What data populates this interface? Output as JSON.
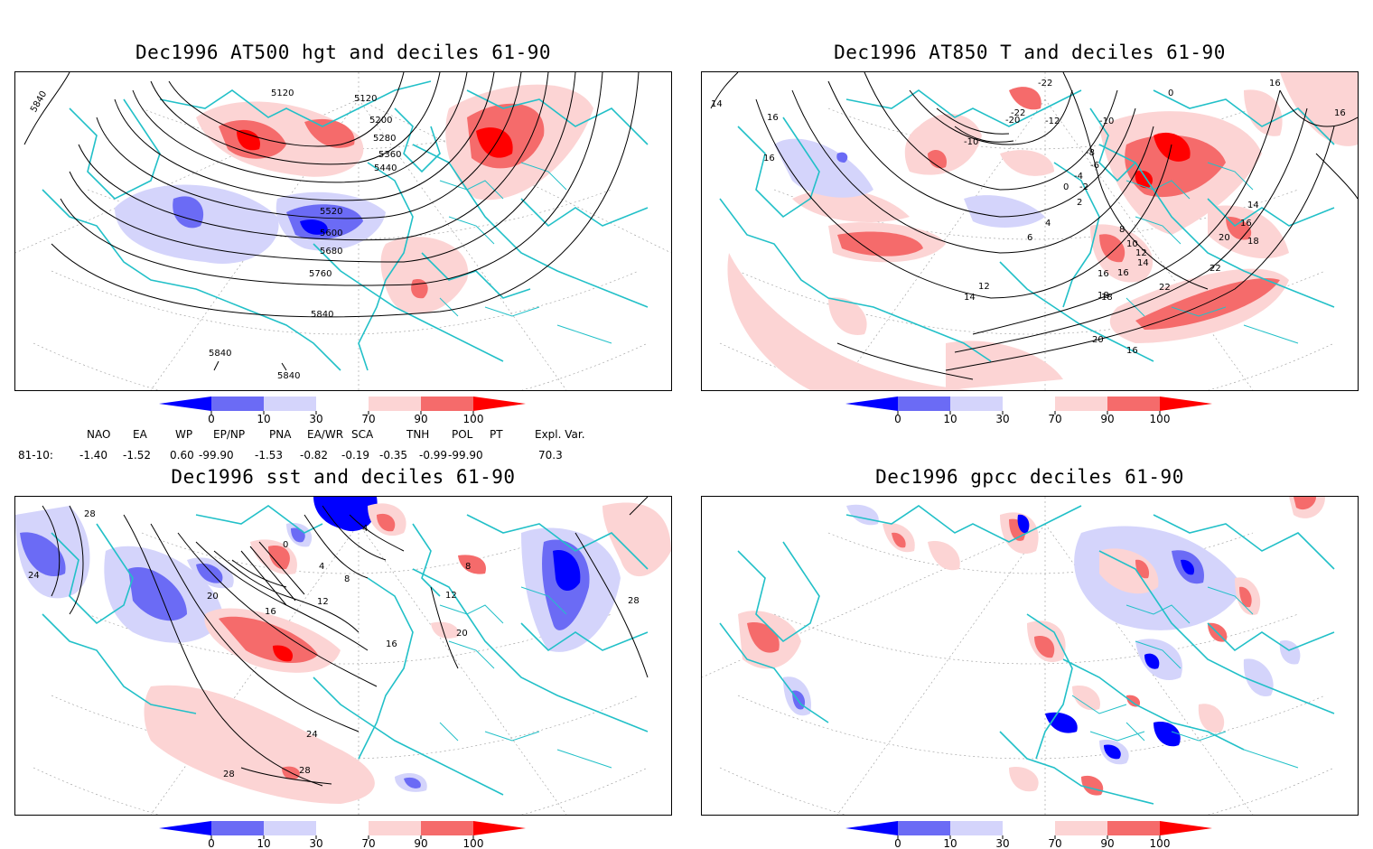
{
  "colors": {
    "coast": "#22c0c8",
    "deep_blue": "#0000ff",
    "mid_blue": "#6b6bf5",
    "light_blue": "#d4d4fb",
    "light_red": "#fcd4d4",
    "mid_red": "#f56b6b",
    "deep_red": "#ff0000",
    "contour": "#000000"
  },
  "colorbar": {
    "labels": [
      "0",
      "10",
      "30",
      "70",
      "90",
      "100"
    ]
  },
  "panels": [
    {
      "title": "Dec1996 AT500 hgt and deciles 61-90",
      "contour_labels": [
        "5840",
        "5120",
        "5120",
        "5200",
        "5280",
        "5360",
        "5440",
        "5520",
        "5600",
        "5680",
        "5760",
        "5840",
        "5840",
        "5840"
      ]
    },
    {
      "title": "Dec1996 AT850 T and deciles 61-90",
      "contour_labels": [
        "14",
        "16",
        "16",
        "-22",
        "-22",
        "-20",
        "-12",
        "-10",
        "-10",
        "0",
        "-8",
        "-6",
        "-4",
        "-2",
        "0",
        "2",
        "4",
        "6",
        "8",
        "10",
        "12",
        "14",
        "16",
        "18",
        "20",
        "22",
        "22",
        "12",
        "14",
        "16",
        "18",
        "20",
        "16",
        "16",
        "16",
        "14",
        "16",
        "18"
      ]
    },
    {
      "title": "Dec1996 sst and deciles 61-90",
      "contour_labels": [
        "28",
        "24",
        "20",
        "16",
        "12",
        "8",
        "4",
        "0",
        "4",
        "8",
        "12",
        "16",
        "20",
        "24",
        "28",
        "28",
        "28"
      ]
    },
    {
      "title": "Dec1996 gpcc deciles 61-90",
      "contour_labels": []
    }
  ],
  "indices": {
    "headers": [
      "NAO",
      "EA",
      "WP",
      "EP/NP",
      "PNA",
      "EA/WR",
      "SCA",
      "TNH",
      "POL",
      "PT",
      "Expl. Var."
    ],
    "row_label": "81-10:",
    "values": [
      "-1.40",
      "-1.52",
      "0.60",
      "-99.90",
      "-1.53",
      "-0.82",
      "-0.19",
      "-0.35",
      "-0.99",
      "-99.90",
      "70.3"
    ]
  }
}
